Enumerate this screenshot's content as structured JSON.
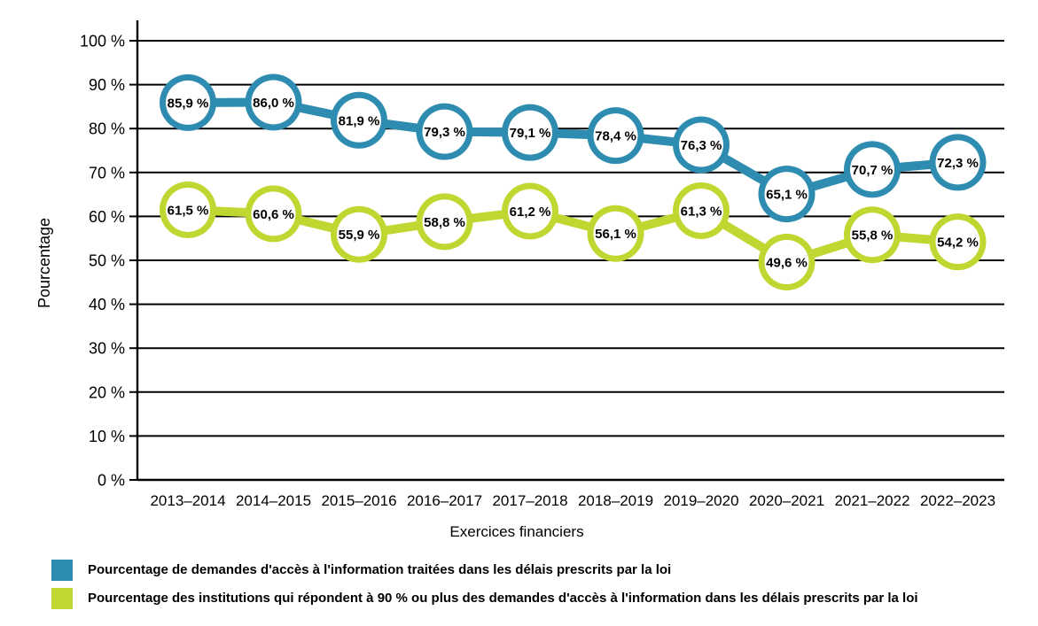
{
  "chart_data": {
    "type": "line",
    "title": "",
    "xlabel": "Exercices financiers",
    "ylabel": "Pourcentage",
    "categories": [
      "2013–2014",
      "2014–2015",
      "2015–2016",
      "2016–2017",
      "2017–2018",
      "2018–2019",
      "2019–2020",
      "2020–2021",
      "2021–2022",
      "2022–2023"
    ],
    "series": [
      {
        "name": "Pourcentage de demandes d'accès à l'information traitées dans les délais prescrits par la loi",
        "color": "#2E8CB0",
        "values": [
          85.9,
          86.0,
          81.9,
          79.3,
          79.1,
          78.4,
          76.3,
          65.1,
          70.7,
          72.3
        ],
        "point_labels": [
          "85,9 %",
          "86,0 %",
          "81,9 %",
          "79,3 %",
          "79,1 %",
          "78,4 %",
          "76,3 %",
          "65,1 %",
          "70,7 %",
          "72,3 %"
        ]
      },
      {
        "name": "Pourcentage des institutions qui répondent à 90 % ou plus des demandes d'accès à l'information dans les délais prescrits par la loi",
        "color": "#C0D732",
        "values": [
          61.5,
          60.6,
          55.9,
          58.8,
          61.2,
          56.1,
          61.3,
          49.6,
          55.8,
          54.2
        ],
        "point_labels": [
          "61,5 %",
          "60,6 %",
          "55,9 %",
          "58,8 %",
          "61,2 %",
          "56,1 %",
          "61,3 %",
          "49,6 %",
          "55,8 %",
          "54,2 %"
        ]
      }
    ],
    "ylim": [
      0,
      100
    ],
    "ytick_step": 10,
    "ytick_labels": [
      "0 %",
      "10 %",
      "20 %",
      "30 %",
      "40 %",
      "50 %",
      "60 %",
      "70 %",
      "80 %",
      "90 %",
      "100 %"
    ],
    "grid": true,
    "legend_position": "bottom-left",
    "marker_style": "ring",
    "axis_color": "#000000",
    "label_color": "#000000"
  }
}
